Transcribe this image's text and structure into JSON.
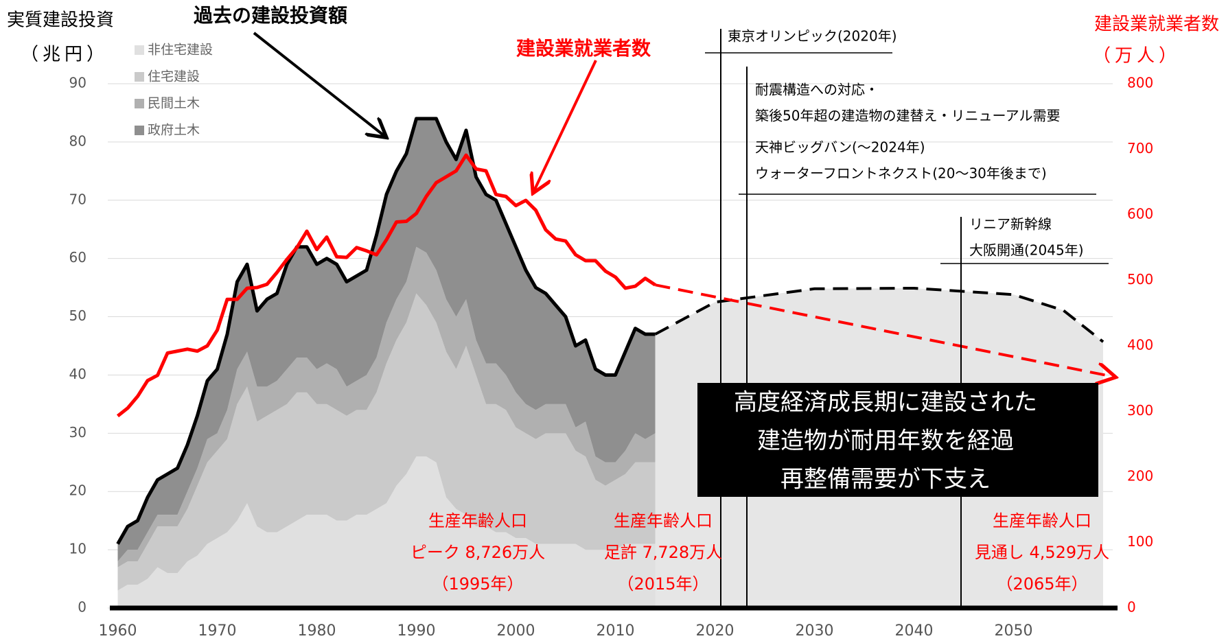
{
  "chart_data": {
    "type": "stacked_area",
    "y_label_lines": [
      "実質建設投資",
      "（兆円）"
    ],
    "y2_label_lines": [
      "建設業就業者数",
      "（万人）"
    ],
    "x": [
      1960,
      1961,
      1962,
      1963,
      1964,
      1965,
      1966,
      1967,
      1968,
      1969,
      1970,
      1971,
      1972,
      1973,
      1974,
      1975,
      1976,
      1977,
      1978,
      1979,
      1980,
      1981,
      1982,
      1983,
      1984,
      1985,
      1986,
      1987,
      1988,
      1989,
      1990,
      1991,
      1992,
      1993,
      1994,
      1995,
      1996,
      1997,
      1998,
      1999,
      2000,
      2001,
      2002,
      2003,
      2004,
      2005,
      2006,
      2007,
      2008,
      2009,
      2010,
      2011,
      2012,
      2013,
      2014
    ],
    "series": [
      {
        "name": "非住宅建設",
        "color": "#e0e0e0",
        "values": [
          3,
          4,
          4,
          5,
          7,
          6,
          6,
          8,
          9,
          11,
          12,
          13,
          15,
          18,
          14,
          13,
          13,
          14,
          15,
          16,
          16,
          16,
          15,
          15,
          16,
          16,
          17,
          18,
          21,
          23,
          26,
          26,
          25,
          19,
          17,
          16,
          14,
          14,
          13,
          13,
          12,
          12,
          11,
          11,
          11,
          11,
          11,
          10,
          10,
          10,
          10,
          11,
          11,
          11,
          11
        ]
      },
      {
        "name": "住宅建設",
        "color": "#cacaca",
        "values": [
          4,
          4,
          4,
          6,
          7,
          8,
          8,
          9,
          12,
          14,
          15,
          16,
          20,
          20,
          18,
          20,
          21,
          21,
          22,
          21,
          19,
          19,
          19,
          18,
          18,
          18,
          20,
          24,
          25,
          26,
          28,
          26,
          24,
          25,
          24,
          29,
          26,
          21,
          22,
          21,
          19,
          18,
          18,
          19,
          19,
          19,
          16,
          16,
          12,
          11,
          12,
          12,
          14,
          14,
          14
        ]
      },
      {
        "name": "民間土木",
        "color": "#b0b0b0",
        "values": [
          1,
          2,
          2,
          2,
          2,
          2,
          2,
          3,
          3,
          4,
          3,
          5,
          6,
          6,
          6,
          5,
          5,
          6,
          6,
          6,
          6,
          7,
          7,
          5,
          5,
          6,
          6,
          7,
          7,
          7,
          8,
          9,
          9,
          9,
          9,
          8,
          6,
          7,
          7,
          6,
          6,
          5,
          5,
          5,
          5,
          5,
          4,
          6,
          4,
          4,
          3,
          4,
          5,
          4,
          5
        ]
      },
      {
        "name": "政府土木",
        "color": "#8f8f8f",
        "values": [
          3,
          4,
          5,
          6,
          6,
          7,
          8,
          8,
          9,
          10,
          11,
          13,
          15,
          15,
          13,
          15,
          15,
          18,
          19,
          19,
          18,
          18,
          18,
          18,
          18,
          18,
          21,
          22,
          22,
          22,
          22,
          23,
          26,
          27,
          27,
          29,
          28,
          29,
          28,
          26,
          25,
          23,
          21,
          19,
          17,
          15,
          14,
          14,
          15,
          15,
          15,
          17,
          18,
          18,
          17
        ]
      }
    ],
    "outline_color": "#000000",
    "series_label": "過去の建設投資額",
    "investment_outlook": {
      "x": [
        2014,
        2020,
        2030,
        2040,
        2050,
        2055,
        2059
      ],
      "values": [
        47,
        52.5,
        54.8,
        54.9,
        53.8,
        51.1,
        45.7
      ]
    },
    "workers": {
      "name": "建設業就業者数",
      "color": "#ff0000",
      "x": [
        1960,
        1961,
        1962,
        1963,
        1964,
        1965,
        1966,
        1967,
        1968,
        1969,
        1970,
        1971,
        1972,
        1973,
        1974,
        1975,
        1976,
        1977,
        1978,
        1979,
        1980,
        1981,
        1982,
        1983,
        1984,
        1985,
        1986,
        1987,
        1988,
        1989,
        1990,
        1991,
        1992,
        1993,
        1994,
        1995,
        1996,
        1997,
        1998,
        1999,
        2000,
        2001,
        2002,
        2003,
        2004,
        2005,
        2006,
        2007,
        2008,
        2009,
        2010,
        2011,
        2012,
        2013,
        2014
      ],
      "values": [
        293,
        305,
        323,
        347,
        355,
        389,
        392,
        395,
        392,
        400,
        424,
        471,
        471,
        488,
        489,
        494,
        512,
        532,
        550,
        575,
        547,
        566,
        536,
        535,
        550,
        545,
        539,
        562,
        589,
        590,
        602,
        628,
        649,
        658,
        667,
        691,
        670,
        667,
        631,
        628,
        614,
        622,
        607,
        577,
        563,
        560,
        539,
        530,
        530,
        514,
        505,
        488,
        491,
        503,
        493
      ]
    },
    "workers_projection": {
      "x": [
        2014,
        2060
      ],
      "values": [
        493,
        353
      ]
    },
    "xlim": [
      1959,
      2061
    ],
    "xticks": [
      1960,
      1970,
      1980,
      1990,
      2000,
      2010,
      2020,
      2030,
      2040,
      2050
    ],
    "ylim": [
      0,
      90
    ],
    "yticks": [
      0,
      10,
      20,
      30,
      40,
      50,
      60,
      70,
      80,
      90
    ],
    "y2lim": [
      0,
      800
    ],
    "y2ticks": [
      0,
      100,
      200,
      300,
      400,
      500,
      600,
      700,
      800
    ],
    "grid": true,
    "box_text": [
      "高度経済成長期に建設された",
      "建造物が耐用年数を経過",
      "再整備需要が下支え"
    ],
    "events": [
      [
        "東京オリンピック(2020年)"
      ],
      [
        "耐震構造への対応・",
        "築後50年超の建造物の建替え・リニューアル需要",
        "天神ビッグバン(～2024年)",
        "ウォーターフロントネクスト(20～30年後まで)"
      ],
      [
        "リニア新幹線",
        "大阪開通(2045年)"
      ]
    ],
    "population": [
      [
        "生産年齢人口",
        "ピーク 8,726万人",
        "（1995年）"
      ],
      [
        "生産年齢人口",
        "足許 7,728万人",
        "（2015年）"
      ],
      [
        "生産年齢人口",
        "見通し 4,529万人",
        "（2065年）"
      ]
    ]
  }
}
